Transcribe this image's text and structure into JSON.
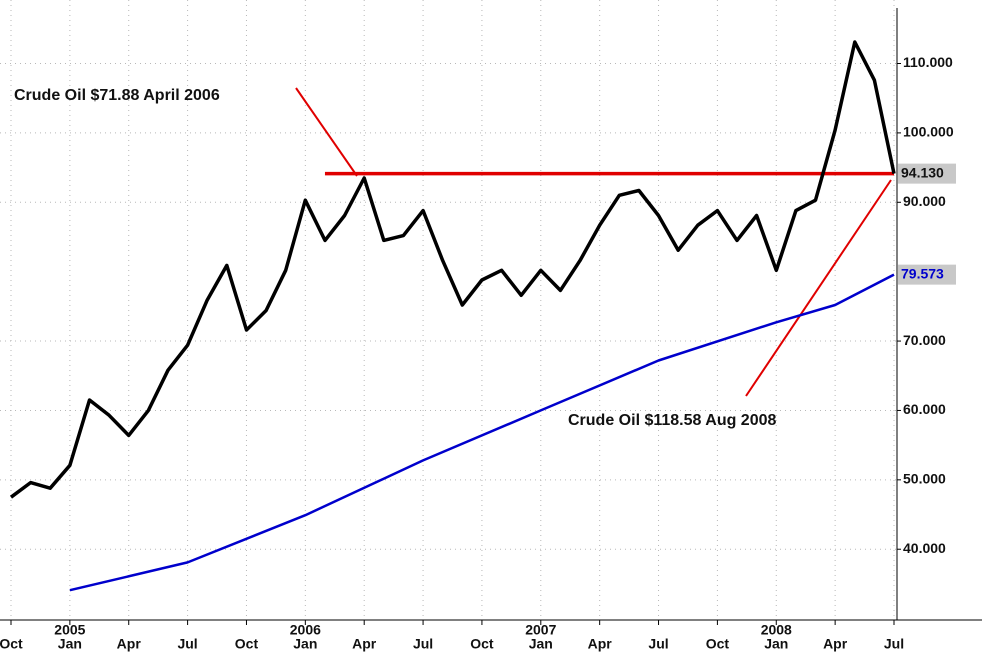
{
  "chart_data": {
    "type": "line",
    "xlim": [
      "2004-10",
      "2008-07"
    ],
    "ylim": [
      29.8,
      118
    ],
    "yticks": [
      {
        "value": 40,
        "label": "40.000"
      },
      {
        "value": 50,
        "label": "50.000"
      },
      {
        "value": 60,
        "label": "60.000"
      },
      {
        "value": 70,
        "label": "70.000"
      },
      {
        "value": 90,
        "label": "90.000"
      },
      {
        "value": 100,
        "label": "100.000"
      },
      {
        "value": 110,
        "label": "110.000"
      }
    ],
    "xticks": [
      {
        "value": "2004-10",
        "label": "Oct"
      },
      {
        "value": "2005-01",
        "label": "Jan"
      },
      {
        "value": "2005-04",
        "label": "Apr"
      },
      {
        "value": "2005-07",
        "label": "Jul"
      },
      {
        "value": "2005-10",
        "label": "Oct"
      },
      {
        "value": "2006-01",
        "label": "Jan"
      },
      {
        "value": "2006-04",
        "label": "Apr"
      },
      {
        "value": "2006-07",
        "label": "Jul"
      },
      {
        "value": "2006-10",
        "label": "Oct"
      },
      {
        "value": "2007-01",
        "label": "Jan"
      },
      {
        "value": "2007-04",
        "label": "Apr"
      },
      {
        "value": "2007-07",
        "label": "Jul"
      },
      {
        "value": "2007-10",
        "label": "Oct"
      },
      {
        "value": "2008-01",
        "label": "Jan"
      },
      {
        "value": "2008-04",
        "label": "Apr"
      },
      {
        "value": "2008-07",
        "label": "Jul"
      }
    ],
    "year_labels": [
      {
        "value": "2005-01",
        "label": "2005"
      },
      {
        "value": "2006-01",
        "label": "2006"
      },
      {
        "value": "2007-01",
        "label": "2007"
      },
      {
        "value": "2008-01",
        "label": "2008"
      }
    ],
    "grid": true,
    "series": [
      {
        "color": "#000000",
        "x": [
          "2004-10",
          "2004-11",
          "2004-12",
          "2005-01",
          "2005-02",
          "2005-03",
          "2005-04",
          "2005-05",
          "2005-06",
          "2005-07",
          "2005-08",
          "2005-09",
          "2005-10",
          "2005-11",
          "2005-12",
          "2006-01",
          "2006-02",
          "2006-03",
          "2006-04",
          "2006-05",
          "2006-06",
          "2006-07",
          "2006-08",
          "2006-09",
          "2006-10",
          "2006-11",
          "2006-12",
          "2007-01",
          "2007-02",
          "2007-03",
          "2007-04",
          "2007-05",
          "2007-06",
          "2007-07",
          "2007-08",
          "2007-09",
          "2007-10",
          "2007-11",
          "2007-12",
          "2008-01",
          "2008-02",
          "2008-03",
          "2008-04",
          "2008-05",
          "2008-06",
          "2008-07"
        ],
        "values": [
          47.5,
          49.6,
          48.8,
          52.1,
          61.5,
          59.3,
          56.4,
          60,
          65.8,
          69.4,
          75.9,
          80.9,
          71.6,
          74.4,
          80.2,
          90.3,
          84.5,
          88.1,
          93.5,
          84.5,
          85.2,
          88.8,
          81.6,
          75.2,
          78.8,
          80.2,
          76.6,
          80.2,
          77.3,
          81.6,
          86.7,
          91,
          91.7,
          88.1,
          83.1,
          86.7,
          88.8,
          84.5,
          88.1,
          80.2,
          88.8,
          90.3,
          100.4,
          113.1,
          107.6,
          94.13
        ],
        "last_label": "94.130"
      },
      {
        "color": "#0000cc",
        "x": [
          "2005-01",
          "2005-07",
          "2006-01",
          "2006-07",
          "2007-01",
          "2007-07",
          "2008-01",
          "2008-04",
          "2008-07"
        ],
        "values": [
          34.1,
          38.1,
          44.9,
          52.8,
          60,
          67.2,
          72.7,
          75.2,
          79.573
        ],
        "last_label": "79.573"
      }
    ],
    "hline": {
      "value": 94.13,
      "from": "2006-02",
      "to": "2008-07",
      "color": "#e00000"
    },
    "annotations": [
      "Crude Oil $71.88 April 2006",
      "Crude Oil $118.58 Aug 2008"
    ]
  }
}
